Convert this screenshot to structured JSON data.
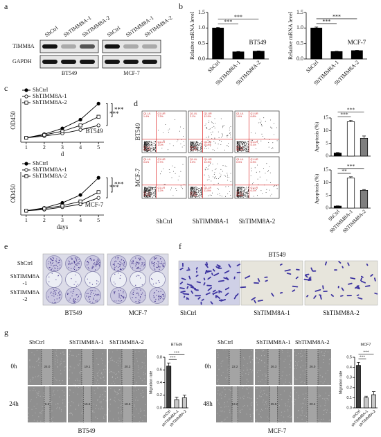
{
  "chart_data": [
    {
      "type": "bar",
      "title": "BT549",
      "ylabel": "Relative mRNA level",
      "categories": [
        "ShCtrl",
        "ShTIMM8A-1",
        "ShTIMM8A-2"
      ],
      "values": [
        1.0,
        0.23,
        0.25
      ],
      "errors": [
        0.02,
        0.01,
        0.01
      ],
      "colors": [
        "#000000",
        "#000000",
        "#000000"
      ],
      "ylim": [
        0,
        1.5
      ],
      "yticks": [
        {
          "value": 0,
          "label": "0.0"
        },
        0.5,
        {
          "value": 1,
          "label": "1.0"
        },
        1.5
      ],
      "annotations": [
        "***",
        "***"
      ]
    },
    {
      "type": "bar",
      "title": "MCF-7",
      "ylabel": "Relative mRNA level",
      "categories": [
        "ShCtrl",
        "ShTIMM8A-1",
        "ShTIMM8A-2"
      ],
      "values": [
        1.0,
        0.24,
        0.27
      ],
      "errors": [
        0.03,
        0.01,
        0.01
      ],
      "colors": [
        "#000000",
        "#000000",
        "#000000"
      ],
      "ylim": [
        0,
        1.5
      ],
      "yticks": [
        {
          "value": 0,
          "label": "0.0"
        },
        0.5,
        {
          "value": 1,
          "label": "1.0"
        },
        1.5
      ],
      "annotations": [
        "***",
        "***"
      ]
    },
    {
      "type": "line",
      "title": "BT549",
      "ylabel": "OD450",
      "xlabel": "d",
      "x": [
        1,
        2,
        3,
        4,
        5
      ],
      "xlim": [
        0.7,
        5.3
      ],
      "xticks": [
        1,
        2,
        3,
        4,
        5
      ],
      "ylim": [
        0,
        3
      ],
      "series": [
        {
          "name": "ShCtrl",
          "color": "#000000",
          "marker": "circle",
          "filled": true,
          "values": [
            0.3,
            0.55,
            0.95,
            1.55,
            2.65
          ]
        },
        {
          "name": "ShTIMM8A-1",
          "color": "#000000",
          "marker": "circle",
          "filled": false,
          "values": [
            0.3,
            0.42,
            0.6,
            0.85,
            1.15
          ]
        },
        {
          "name": "ShTIMM8A-2",
          "color": "#000000",
          "marker": "square",
          "filled": false,
          "values": [
            0.3,
            0.5,
            0.75,
            1.15,
            1.75
          ]
        }
      ],
      "annotations": [
        "***",
        "***"
      ]
    },
    {
      "type": "line",
      "title": "MCF-7",
      "ylabel": "OD450",
      "xlabel": "days",
      "x": [
        1,
        2,
        3,
        4,
        5
      ],
      "xlim": [
        0.7,
        5.3
      ],
      "xticks": [
        1,
        2,
        3,
        4,
        5
      ],
      "ylim": [
        0,
        3
      ],
      "series": [
        {
          "name": "ShCtrl",
          "color": "#000000",
          "marker": "circle",
          "filled": true,
          "values": [
            0.3,
            0.5,
            0.85,
            1.4,
            2.6
          ]
        },
        {
          "name": "ShTIMM8A-1",
          "color": "#000000",
          "marker": "circle",
          "filled": false,
          "values": [
            0.3,
            0.38,
            0.55,
            0.75,
            1.2
          ]
        },
        {
          "name": "ShTIMM8A-2",
          "color": "#000000",
          "marker": "square",
          "filled": false,
          "values": [
            0.3,
            0.45,
            0.65,
            0.95,
            1.6
          ]
        }
      ],
      "annotations": [
        "***",
        "***"
      ]
    },
    {
      "type": "bar",
      "ylabel": "Apoptosis (%)",
      "categories": [
        null,
        null,
        null
      ],
      "values": [
        1.2,
        13.5,
        7.0
      ],
      "errors": [
        0.2,
        0.6,
        0.9
      ],
      "colors": [
        "#000000",
        "#ffffff",
        "#7f7f7f"
      ],
      "ylim": [
        0,
        15
      ],
      "yticks": [
        0,
        5,
        10,
        15
      ],
      "annotations": [
        "***",
        "***"
      ]
    },
    {
      "type": "bar",
      "ylabel": "Apoptosis (%)",
      "categories": [
        "ShCtrl",
        "ShTIMM8A-1",
        "ShTIMM8A-2"
      ],
      "values": [
        0.8,
        11.8,
        7.0
      ],
      "errors": [
        0.1,
        0.5,
        0.3
      ],
      "colors": [
        "#000000",
        "#ffffff",
        "#7f7f7f"
      ],
      "ylim": [
        0,
        15
      ],
      "yticks": [
        0,
        5,
        10,
        15
      ],
      "annotations": [
        "**",
        "***"
      ]
    },
    {
      "type": "bar",
      "title": "BT549",
      "ylabel": "Migration rate",
      "categories": [
        "shCtrl",
        "shTIMM8A-1",
        "shTIMM8A-2"
      ],
      "values": [
        0.66,
        0.13,
        0.16
      ],
      "errors": [
        0.05,
        0.04,
        0.04
      ],
      "colors": [
        "#3a3a3a",
        "#c8c8c8",
        "#c8c8c8"
      ],
      "ylim": [
        0,
        0.8
      ],
      "yticks": [
        {
          "value": 0,
          "label": "0.0"
        },
        0.2,
        0.4,
        0.6,
        0.8
      ],
      "annotations": [
        "***",
        "***"
      ]
    },
    {
      "type": "bar",
      "title": "MCF7",
      "ylabel": "Migration rate",
      "categories": [
        "shCtrl",
        "shTIMM8A-1",
        "shTIMM8A-2"
      ],
      "values": [
        0.42,
        0.1,
        0.13
      ],
      "errors": [
        0.03,
        0.015,
        0.03
      ],
      "colors": [
        "#3a3a3a",
        "#c8c8c8",
        "#c8c8c8"
      ],
      "ylim": [
        0,
        0.5
      ],
      "yticks": [
        {
          "value": 0,
          "label": "0.0"
        },
        0.1,
        0.2,
        0.3,
        0.4,
        0.5
      ],
      "annotations": [
        "***",
        "***"
      ]
    }
  ],
  "figure": {
    "letters": [
      "a",
      "b",
      "c",
      "d",
      "e",
      "f",
      "g"
    ],
    "blot": {
      "lanes": [
        "ShCtrl",
        "ShTIMM8A-1",
        "ShTIMM8A-2"
      ],
      "proteins": [
        "TIMM8A",
        "GAPDH"
      ],
      "cells": [
        "BT549",
        "MCF-7"
      ]
    },
    "flow": {
      "rows": [
        "BT549",
        "MCF-7"
      ],
      "columns": [
        "ShCtrl",
        "ShTIMM8A-1",
        "ShTIMM8A-2"
      ],
      "quadrants": [
        "Q1-UL",
        "Q1-UR",
        "Q1-LL",
        "Q1-LR"
      ],
      "percentages": [
        [
          [
            "1.4%",
            "7.3%",
            "90.3%",
            "1.0%"
          ],
          [
            "2.1%",
            "12.9%",
            "74.2%",
            "10.8%"
          ],
          [
            "1.6%",
            "6.8%",
            "86.5%",
            "5.1%"
          ]
        ],
        [
          [
            "0.6%",
            "0.7%",
            "97.5%",
            "1.2%"
          ],
          [
            "0.9%",
            "10.3%",
            "77.3%",
            "11.5%"
          ],
          [
            "0.9%",
            "6.3%",
            "86.6%",
            "6.2%"
          ]
        ]
      ]
    },
    "colony": {
      "rows": [
        [
          "ShCtrl"
        ],
        [
          "ShTIMM8A",
          "-1"
        ],
        [
          "ShTIMM8A",
          "-2"
        ]
      ],
      "cells": [
        "BT549",
        "MCF-7"
      ]
    },
    "transwell": {
      "title": "BT549",
      "columns": [
        "ShCtrl",
        "ShTIMM8A-1",
        "ShTIMM8A-2"
      ]
    },
    "wound": [
      {
        "columns": [
          "ShCtrl",
          "ShTIMM8A-1",
          "ShTIMM8A-2"
        ],
        "times": [
          "0h",
          "24h"
        ],
        "widths": [
          [
            "24.0",
            "19.1",
            "20.2"
          ],
          [
            "6.6",
            "15.6",
            "18.6"
          ]
        ],
        "cell": "BT549"
      },
      {
        "columns": [
          "ShCtrl",
          "ShTIMM8A-1",
          "ShTIMM8A-2"
        ],
        "times": [
          "0h",
          "48h"
        ],
        "widths": [
          [
            "22.2",
            "26.3",
            "26.0"
          ],
          [
            "13.2",
            "25.5",
            "20.4"
          ]
        ],
        "cell": "MCF-7"
      }
    ]
  }
}
